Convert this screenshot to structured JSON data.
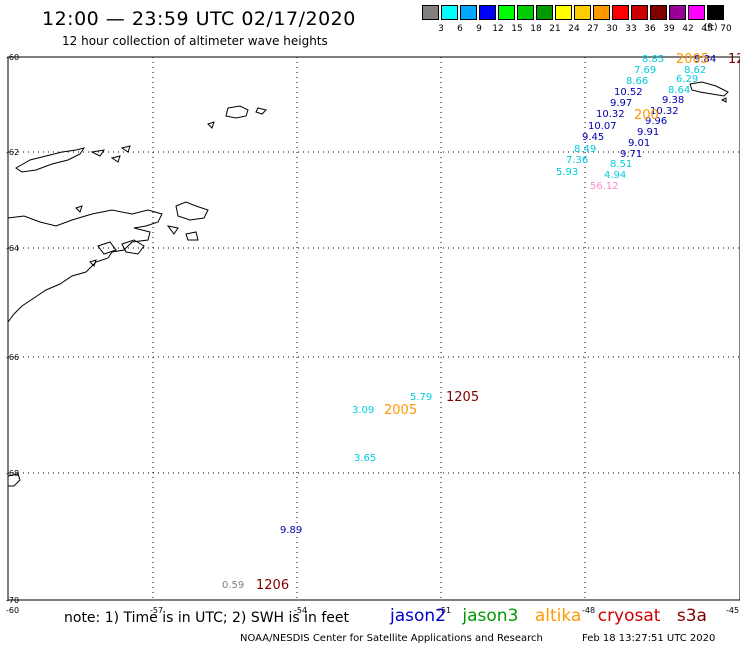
{
  "header": {
    "title": "12:00 — 23:59 UTC 02/17/2020",
    "subtitle": "12 hour collection of altimeter wave heights"
  },
  "legend": {
    "unit": "(ft)",
    "bins": [
      {
        "label": "3",
        "color": "#808080"
      },
      {
        "label": "6",
        "color": "#00ffff"
      },
      {
        "label": "9",
        "color": "#00a8ff"
      },
      {
        "label": "12",
        "color": "#0000ff"
      },
      {
        "label": "15",
        "color": "#00ff00"
      },
      {
        "label": "18",
        "color": "#00cc00"
      },
      {
        "label": "21",
        "color": "#009900"
      },
      {
        "label": "24",
        "color": "#ffff00"
      },
      {
        "label": "27",
        "color": "#ffcc00"
      },
      {
        "label": "30",
        "color": "#ff9900"
      },
      {
        "label": "33",
        "color": "#ff0000"
      },
      {
        "label": "36",
        "color": "#cc0000"
      },
      {
        "label": "39",
        "color": "#800000"
      },
      {
        "label": "42",
        "color": "#990099"
      },
      {
        "label": "45",
        "color": "#ff00ff"
      },
      {
        "label": "70",
        "color": "#000000"
      }
    ]
  },
  "axes": {
    "lat_labels": [
      "-60",
      "-62",
      "-64",
      "-66",
      "-68",
      "-70"
    ],
    "lon_labels": [
      "-60",
      "-57",
      "-54",
      "-51",
      "-48",
      "-45"
    ]
  },
  "observations": [
    {
      "value": "8.85",
      "color": "#00ccdd"
    },
    {
      "value": "7.69",
      "color": "#00ccdd"
    },
    {
      "value": "8.66",
      "color": "#00ccdd"
    },
    {
      "value": "10.52",
      "color": "#0000aa"
    },
    {
      "value": "9.97",
      "color": "#0000aa"
    },
    {
      "value": "10.32",
      "color": "#0000aa"
    },
    {
      "value": "10.07",
      "color": "#0000aa"
    },
    {
      "value": "9.45",
      "color": "#0000aa"
    },
    {
      "value": "8.49",
      "color": "#00ccdd"
    },
    {
      "value": "7.36",
      "color": "#00ccdd"
    },
    {
      "value": "5.93",
      "color": "#00ccdd"
    },
    {
      "value": "9.84",
      "color": "#0000aa"
    },
    {
      "value": "8.62",
      "color": "#00ccdd"
    },
    {
      "value": "6.29",
      "color": "#00ccdd"
    },
    {
      "value": "8.64",
      "color": "#00ccdd"
    },
    {
      "value": "9.38",
      "color": "#0000aa"
    },
    {
      "value": "10.32",
      "color": "#0000aa"
    },
    {
      "value": "9.96",
      "color": "#0000aa"
    },
    {
      "value": "9.91",
      "color": "#0000aa"
    },
    {
      "value": "9.01",
      "color": "#0000aa"
    },
    {
      "value": "9.71",
      "color": "#0000aa"
    },
    {
      "value": "8.51",
      "color": "#00ccdd"
    },
    {
      "value": "4.94",
      "color": "#00ccdd"
    },
    {
      "value": "56.12",
      "color": "#ff88cc"
    },
    {
      "value": "5.79",
      "color": "#00ccdd"
    },
    {
      "value": "3.09",
      "color": "#00ccdd"
    },
    {
      "value": "3.65",
      "color": "#00ccdd"
    },
    {
      "value": "9.89",
      "color": "#0000aa"
    },
    {
      "value": "0.59",
      "color": "#808080"
    }
  ],
  "pass_times": [
    {
      "value": "2005",
      "color": "#ff9900"
    },
    {
      "value": "12",
      "color": "#800000"
    },
    {
      "value": "200",
      "color": "#ff9900"
    },
    {
      "value": "1205",
      "color": "#800000"
    },
    {
      "value": "2005",
      "color": "#ff9900"
    },
    {
      "value": "1206",
      "color": "#800000"
    }
  ],
  "footer": {
    "note": "note: 1) Time is in UTC; 2) SWH is in feet",
    "missions": [
      {
        "name": "jason2",
        "color": "#0000cc"
      },
      {
        "name": "jason3",
        "color": "#009900"
      },
      {
        "name": "altika",
        "color": "#ff9900"
      },
      {
        "name": "cryosat",
        "color": "#cc0000"
      },
      {
        "name": "s3a",
        "color": "#800000"
      }
    ],
    "credit": "NOAA/NESDIS Center for Satellite Applications and Research",
    "timestamp": "Feb 18 13:27:51 UTC 2020"
  }
}
